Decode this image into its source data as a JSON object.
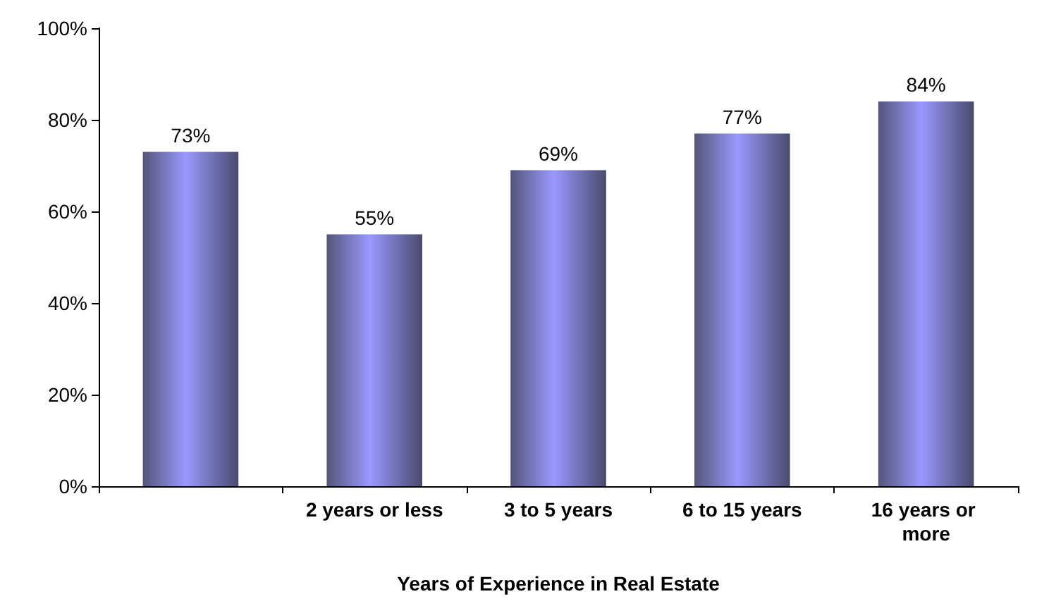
{
  "chart_data": {
    "type": "bar",
    "xlabel": "Years of Experience in Real Estate",
    "categories": [
      null,
      "2 years or less",
      "3 to 5 years",
      "6 to 15 years",
      "16 years or more"
    ],
    "values": [
      73,
      55,
      69,
      77,
      84
    ],
    "value_labels": [
      "73%",
      "55%",
      "69%",
      "77%",
      "84%"
    ],
    "color": "#9999ff",
    "ylim": [
      0,
      100
    ],
    "yticks": [
      {
        "value": 0,
        "label": "0%"
      },
      {
        "value": 20,
        "label": "20%"
      },
      {
        "value": 40,
        "label": "40%"
      },
      {
        "value": 60,
        "label": "60%"
      },
      {
        "value": 80,
        "label": "80%"
      },
      {
        "value": 100,
        "label": "100%"
      }
    ],
    "grid": false
  }
}
